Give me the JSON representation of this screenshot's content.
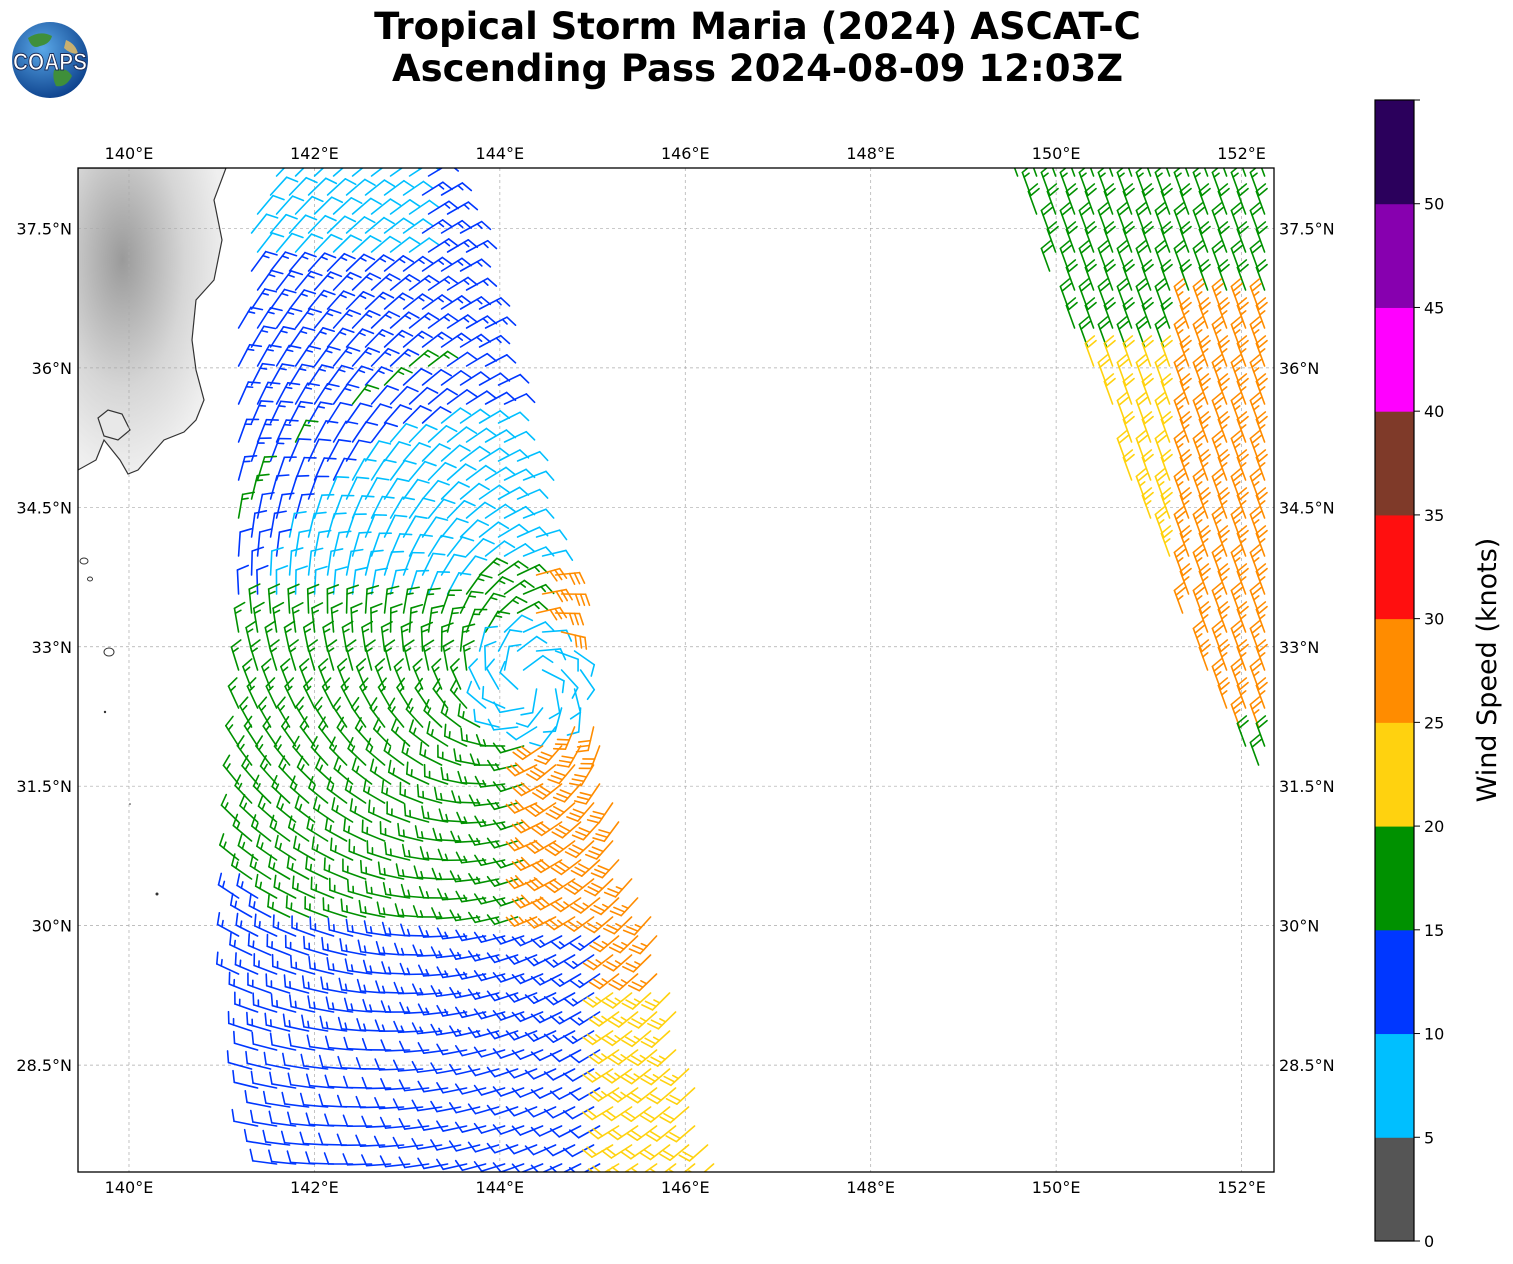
{
  "title": {
    "line1": "Tropical Storm Maria (2024) ASCAT-C",
    "line2": "Ascending Pass 2024-08-09 12:03Z"
  },
  "logo": {
    "text": "COAPS",
    "icon": "globe-logo-icon"
  },
  "map": {
    "lon_range": [
      139.45,
      152.35
    ],
    "lat_range": [
      27.35,
      38.15
    ],
    "lon_ticks": [
      140,
      142,
      144,
      146,
      148,
      150,
      152
    ],
    "lon_tick_labels": [
      "140°E",
      "142°E",
      "144°E",
      "146°E",
      "148°E",
      "150°E",
      "152°E"
    ],
    "lat_ticks": [
      28.5,
      30,
      31.5,
      33,
      34.5,
      36,
      37.5
    ],
    "lat_tick_labels": [
      "28.5°N",
      "30°N",
      "31.5°N",
      "33°N",
      "34.5°N",
      "36°N",
      "37.5°N"
    ],
    "gridlines": true,
    "storm_center": {
      "lon": 144.3,
      "lat": 32.6
    },
    "swaths": [
      {
        "name": "west",
        "corners": [
          [
            141.15,
            38.15
          ],
          [
            143.4,
            38.15
          ],
          [
            146.4,
            27.35
          ],
          [
            141.15,
            27.35
          ]
        ],
        "west_edge": [
          [
            141.1,
            38.15
          ],
          [
            140.9,
            36.8
          ],
          [
            140.3,
            35.2
          ],
          [
            139.9,
            34.5
          ],
          [
            140.7,
            30.8
          ],
          [
            141.1,
            27.35
          ]
        ]
      },
      {
        "name": "east",
        "corners": [
          [
            149.5,
            38.15
          ],
          [
            152.35,
            38.15
          ],
          [
            152.35,
            31.5
          ],
          [
            151.8,
            32.2
          ]
        ]
      }
    ]
  },
  "colorbar": {
    "title": "Wind Speed (knots)",
    "ticks": [
      "0",
      "5",
      "10",
      "15",
      "20",
      "25",
      "30",
      "35",
      "40",
      "45",
      "50"
    ],
    "bins": [
      {
        "min": 0,
        "max": 5,
        "color": "#555555"
      },
      {
        "min": 5,
        "max": 10,
        "color": "#00bfff"
      },
      {
        "min": 10,
        "max": 15,
        "color": "#0037ff"
      },
      {
        "min": 15,
        "max": 20,
        "color": "#009100"
      },
      {
        "min": 20,
        "max": 25,
        "color": "#ffd20f"
      },
      {
        "min": 25,
        "max": 30,
        "color": "#ff8c00"
      },
      {
        "min": 30,
        "max": 35,
        "color": "#ff0f0f"
      },
      {
        "min": 35,
        "max": 40,
        "color": "#7f3a29"
      },
      {
        "min": 40,
        "max": 45,
        "color": "#ff00ff"
      },
      {
        "min": 45,
        "max": 50,
        "color": "#8700af"
      },
      {
        "min": 50,
        "max": 55,
        "color": "#2b005c"
      }
    ]
  }
}
